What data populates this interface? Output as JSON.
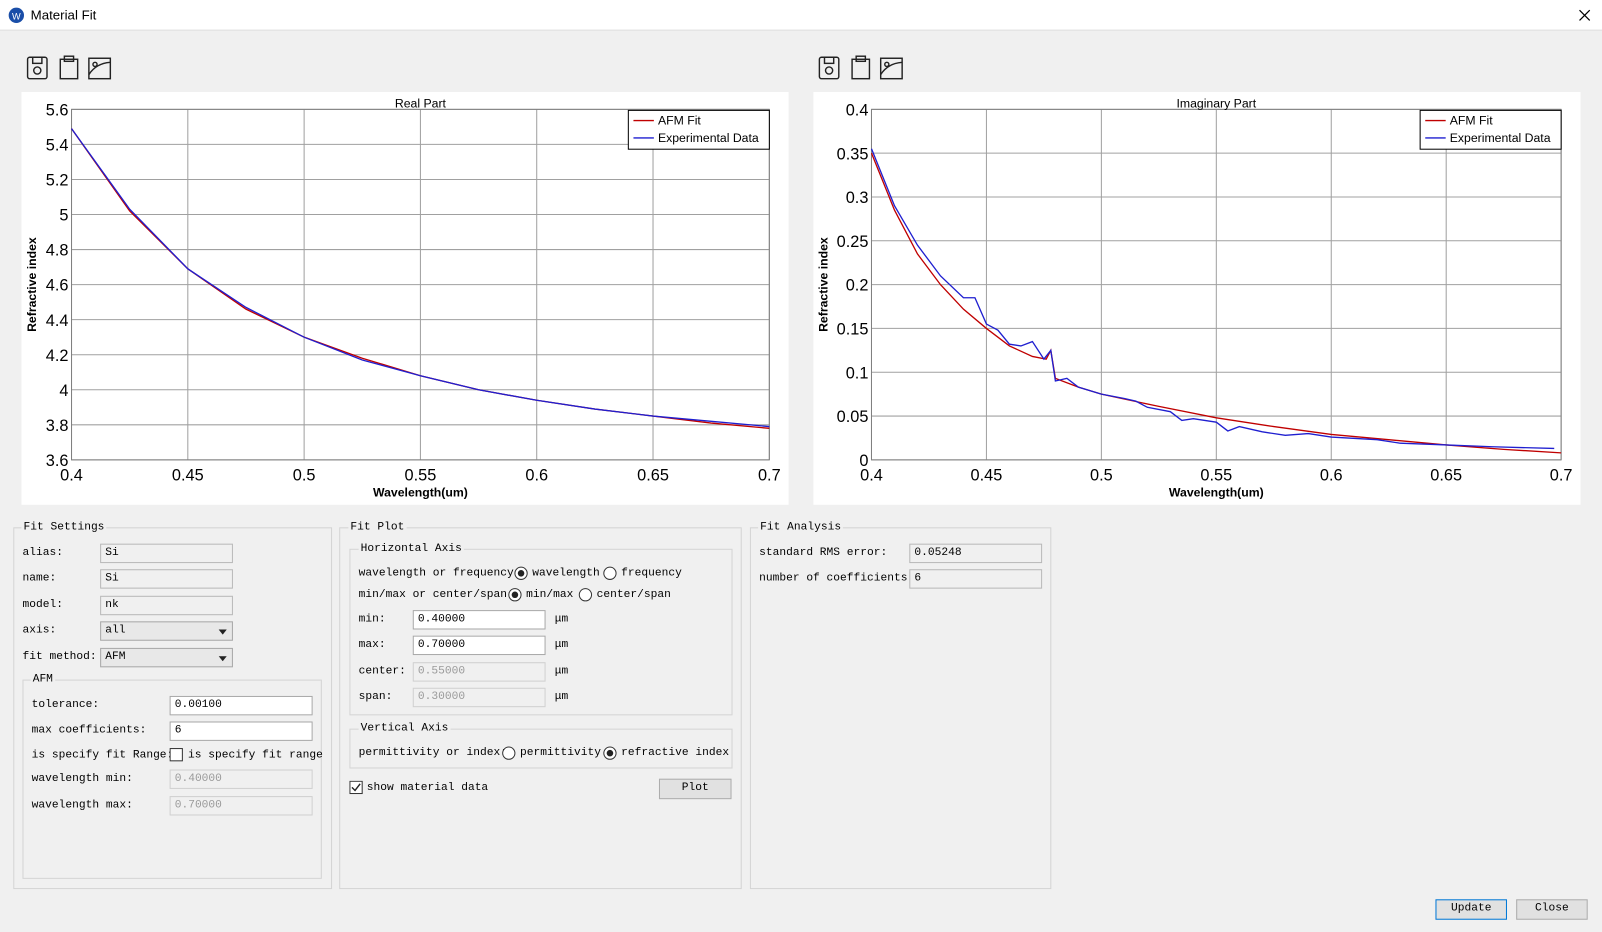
{
  "window": {
    "title": "Material Fit"
  },
  "chart_data": [
    {
      "type": "line",
      "title": "Real Part",
      "x_label": "Wavelength(um)",
      "y_label": "Refractive index",
      "xlim": [
        0.4,
        0.7
      ],
      "ylim": [
        3.6,
        5.6
      ],
      "xticks": [
        0.4,
        0.45,
        0.5,
        0.55,
        0.6,
        0.65,
        0.7
      ],
      "yticks": [
        3.6,
        3.8,
        4,
        4.2,
        4.4,
        4.6,
        4.8,
        5,
        5.2,
        5.4,
        5.6
      ],
      "grid": true,
      "legend": "upper right",
      "series": [
        {
          "name": "AFM Fit",
          "color": "#c00000",
          "x": [
            0.4,
            0.425,
            0.45,
            0.475,
            0.5,
            0.525,
            0.55,
            0.575,
            0.6,
            0.625,
            0.65,
            0.675,
            0.7
          ],
          "values": [
            5.49,
            5.02,
            4.69,
            4.46,
            4.3,
            4.18,
            4.08,
            4,
            3.94,
            3.89,
            3.85,
            3.81,
            3.78
          ]
        },
        {
          "name": "Experimental Data",
          "color": "#1f1fd0",
          "x": [
            0.4,
            0.425,
            0.45,
            0.475,
            0.5,
            0.525,
            0.55,
            0.575,
            0.6,
            0.625,
            0.65,
            0.675,
            0.7
          ],
          "values": [
            5.49,
            5.03,
            4.69,
            4.47,
            4.3,
            4.17,
            4.08,
            4,
            3.94,
            3.89,
            3.85,
            3.82,
            3.79
          ]
        }
      ]
    },
    {
      "type": "line",
      "title": "Imaginary Part",
      "x_label": "Wavelength(um)",
      "y_label": "Refractive index",
      "xlim": [
        0.4,
        0.7
      ],
      "ylim": [
        0,
        0.4
      ],
      "xticks": [
        0.4,
        0.45,
        0.5,
        0.55,
        0.6,
        0.65,
        0.7
      ],
      "yticks": [
        0,
        0.05,
        0.1,
        0.15,
        0.2,
        0.25,
        0.3,
        0.35,
        0.4
      ],
      "grid": true,
      "legend": "upper right",
      "series": [
        {
          "name": "AFM Fit",
          "color": "#c00000",
          "x": [
            0.4,
            0.41,
            0.42,
            0.43,
            0.44,
            0.45,
            0.46,
            0.47,
            0.476,
            0.478,
            0.48,
            0.49,
            0.5,
            0.525,
            0.55,
            0.575,
            0.6,
            0.625,
            0.65,
            0.675,
            0.7
          ],
          "values": [
            0.35,
            0.285,
            0.235,
            0.2,
            0.172,
            0.15,
            0.13,
            0.118,
            0.115,
            0.125,
            0.093,
            0.083,
            0.075,
            0.061,
            0.048,
            0.038,
            0.029,
            0.023,
            0.017,
            0.012,
            0.008
          ]
        },
        {
          "name": "Experimental Data",
          "color": "#1f1fd0",
          "x": [
            0.4,
            0.41,
            0.42,
            0.43,
            0.44,
            0.445,
            0.45,
            0.455,
            0.46,
            0.465,
            0.47,
            0.475,
            0.478,
            0.48,
            0.485,
            0.49,
            0.5,
            0.51,
            0.515,
            0.52,
            0.53,
            0.535,
            0.54,
            0.55,
            0.555,
            0.56,
            0.57,
            0.58,
            0.59,
            0.6,
            0.62,
            0.63,
            0.65,
            0.67,
            0.697
          ],
          "values": [
            0.355,
            0.29,
            0.245,
            0.21,
            0.185,
            0.185,
            0.155,
            0.148,
            0.132,
            0.13,
            0.135,
            0.115,
            0.125,
            0.09,
            0.093,
            0.083,
            0.075,
            0.07,
            0.067,
            0.06,
            0.055,
            0.045,
            0.047,
            0.043,
            0.033,
            0.038,
            0.032,
            0.028,
            0.03,
            0.026,
            0.023,
            0.019,
            0.017,
            0.015,
            0.013
          ]
        }
      ]
    }
  ],
  "fit_settings": {
    "title": "Fit Settings",
    "fields": [
      {
        "label": "alias:",
        "value": "Si"
      },
      {
        "label": "name:",
        "value": "Si"
      },
      {
        "label": "model:",
        "value": "nk"
      },
      {
        "label": "axis:",
        "value": "all"
      },
      {
        "label": "fit method:",
        "value": "AFM"
      }
    ],
    "afm": {
      "title": "AFM",
      "fields": [
        {
          "label": "tolerance:",
          "value": "0.00100"
        },
        {
          "label": "max coefficients:",
          "value": "6"
        }
      ],
      "fit_range": {
        "label": "is specify fit Range:",
        "text": "is specify fit range",
        "checked": false
      },
      "range_fields": [
        {
          "label": "wavelength min:",
          "value": "0.40000"
        },
        {
          "label": "wavelength max:",
          "value": "0.70000"
        }
      ]
    }
  },
  "fit_plot": {
    "title": "Fit Plot",
    "horizontal_axis": {
      "title": "Horizontal Axis",
      "rows": [
        {
          "label": "wavelength or frequency:",
          "options": [
            {
              "text": "wavelength",
              "selected": true
            },
            {
              "text": "frequency",
              "selected": false
            }
          ]
        },
        {
          "label": "min/max or center/span:",
          "options": [
            {
              "text": "min/max",
              "selected": true
            },
            {
              "text": "center/span",
              "selected": false
            }
          ]
        }
      ],
      "fields": [
        {
          "label": "min:",
          "value": "0.40000",
          "unit": "μm"
        },
        {
          "label": "max:",
          "value": "0.70000",
          "unit": "μm"
        },
        {
          "label": "center:",
          "value": "0.55000",
          "unit": "μm"
        },
        {
          "label": "span:",
          "value": "0.30000",
          "unit": "μm"
        }
      ]
    },
    "vertical_axis": {
      "title": "Vertical Axis",
      "label": "permittivity or index:",
      "options": [
        {
          "text": "permittivity",
          "selected": false
        },
        {
          "text": "refractive index",
          "selected": true
        }
      ]
    },
    "show_material_data": {
      "text": "show material data",
      "checked": true
    },
    "plot_button": "Plot"
  },
  "fit_analysis": {
    "title": "Fit Analysis",
    "fields": [
      {
        "label": "standard RMS error:",
        "value": "0.05248"
      },
      {
        "label": "number of coefficients:",
        "value": "6"
      }
    ]
  },
  "buttons": [
    "Update",
    "Close"
  ]
}
